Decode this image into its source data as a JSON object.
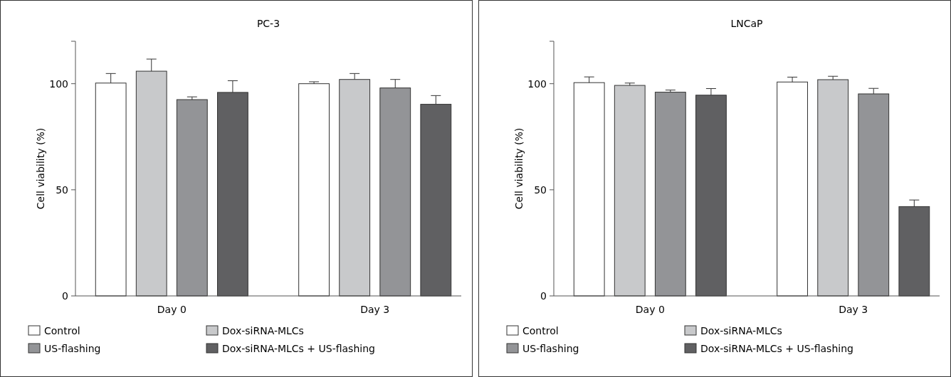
{
  "chart_data": [
    {
      "type": "bar",
      "title": "PC-3",
      "ylabel": "Cell viability (%)",
      "categories": [
        "Day 0",
        "Day 3"
      ],
      "ylim": [
        0,
        120
      ],
      "yticks": [
        0,
        50,
        100
      ],
      "legend": "bottom",
      "series": [
        {
          "name": "Control",
          "color": "#ffffff",
          "values": [
            100.3,
            100
          ],
          "errors": [
            4.5,
            0.9
          ]
        },
        {
          "name": "Dox-siRNA-MLCs",
          "color": "#c8c9cb",
          "values": [
            105.9,
            102
          ],
          "errors": [
            5.7,
            2.8
          ]
        },
        {
          "name": "US-flashing",
          "color": "#939497",
          "values": [
            92.5,
            98
          ],
          "errors": [
            1.3,
            4
          ]
        },
        {
          "name": "Dox-siRNA-MLCs + US-flashing",
          "color": "#606062",
          "values": [
            95.9,
            90.3
          ],
          "errors": [
            5.5,
            4.1
          ]
        }
      ]
    },
    {
      "type": "bar",
      "title": "LNCaP",
      "ylabel": "Cell viability (%)",
      "categories": [
        "Day 0",
        "Day 3"
      ],
      "ylim": [
        0,
        120
      ],
      "yticks": [
        0,
        50,
        100
      ],
      "legend": "bottom",
      "series": [
        {
          "name": "Control",
          "color": "#ffffff",
          "values": [
            100.5,
            100.8
          ],
          "errors": [
            2.7,
            2.3
          ]
        },
        {
          "name": "Dox-siRNA-MLCs",
          "color": "#c8c9cb",
          "values": [
            99.2,
            101.9
          ],
          "errors": [
            1.1,
            1.6
          ]
        },
        {
          "name": "US-flashing",
          "color": "#939497",
          "values": [
            96,
            95.2
          ],
          "errors": [
            1,
            2.6
          ]
        },
        {
          "name": "Dox-siRNA-MLCs + US-flashing",
          "color": "#606062",
          "values": [
            94.6,
            42.1
          ],
          "errors": [
            3.1,
            3.1
          ]
        }
      ]
    }
  ]
}
